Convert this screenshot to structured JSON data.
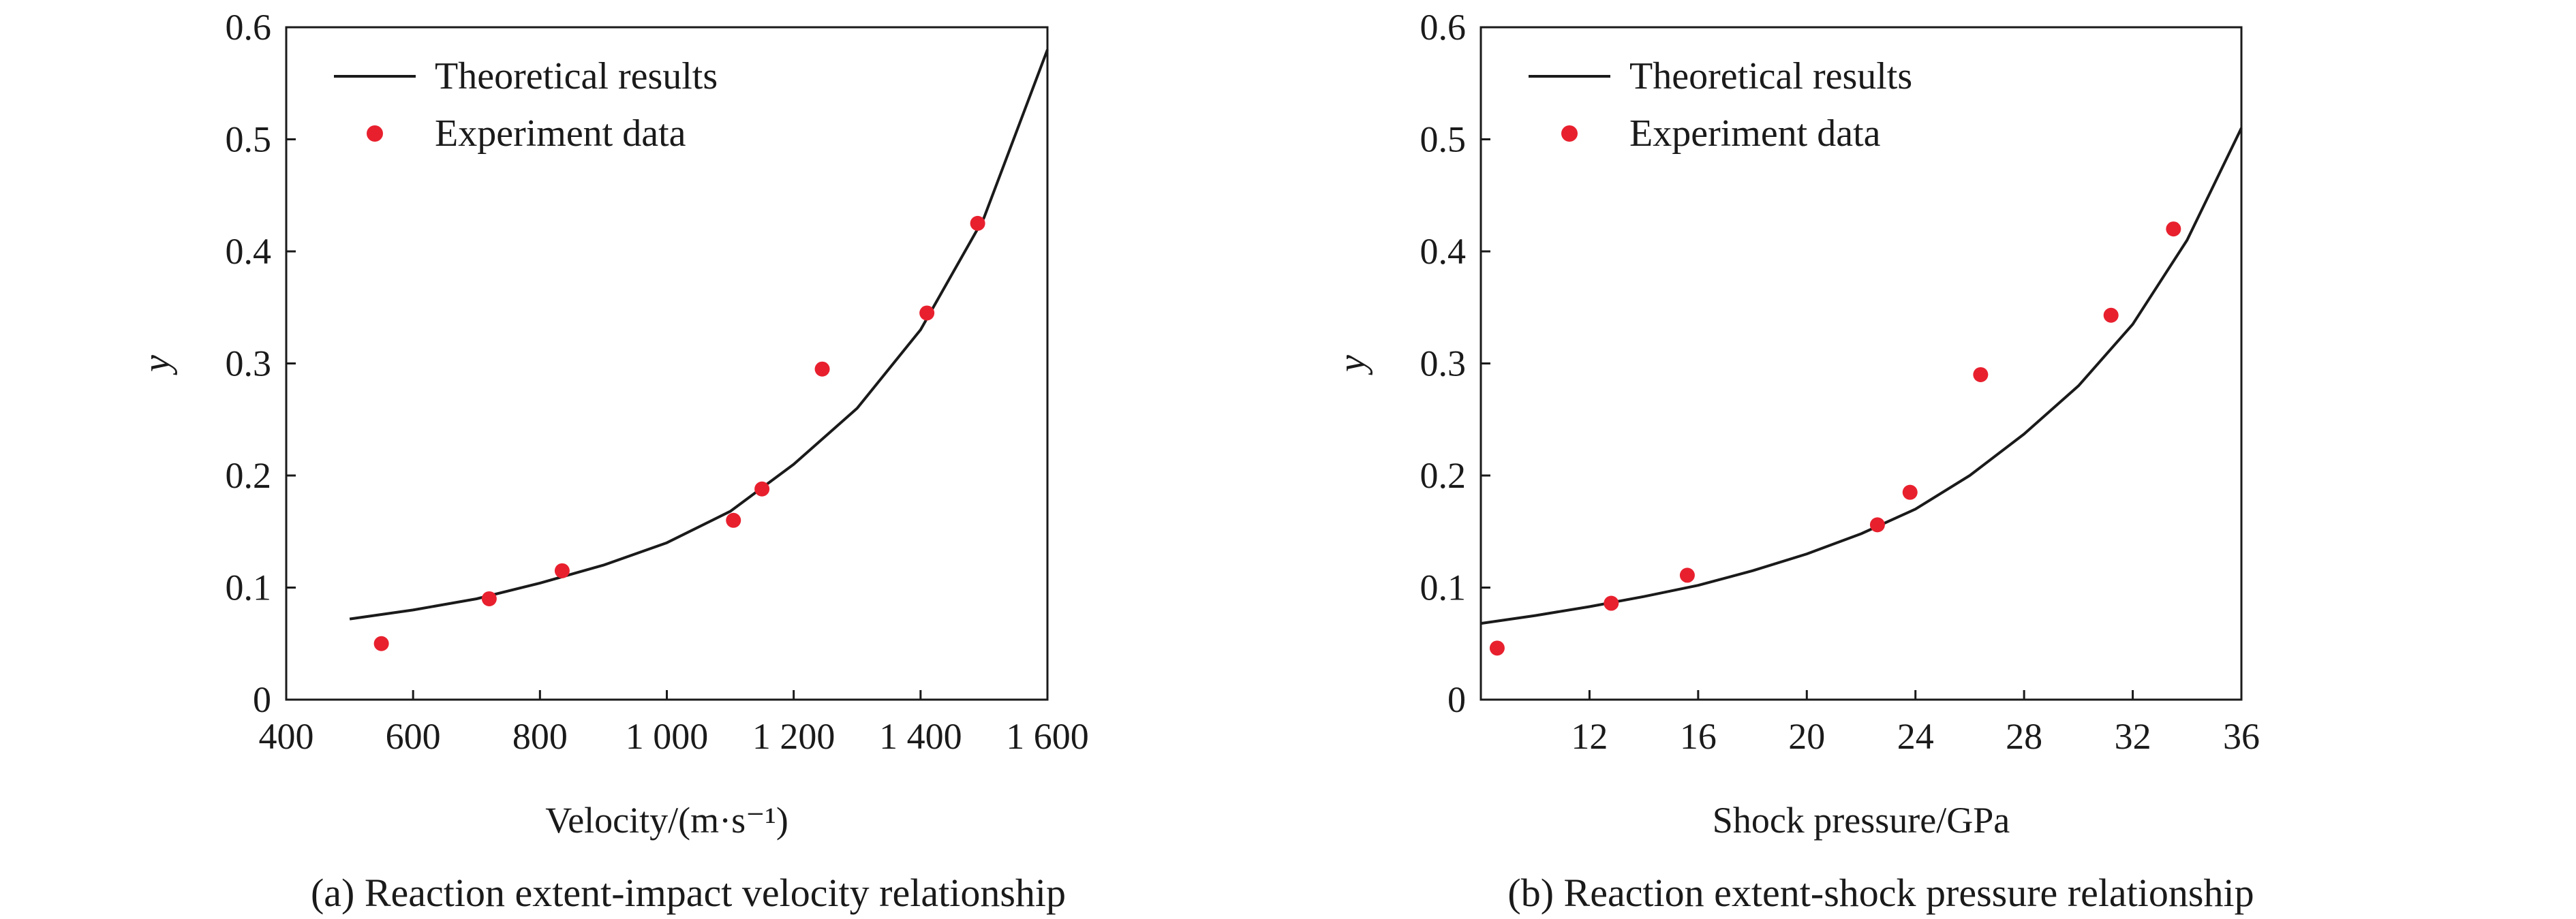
{
  "chart_data": [
    {
      "type": "line+scatter",
      "caption": "(a) Reaction extent-impact velocity relationship",
      "xlabel": "Velocity/(m·s⁻¹)",
      "ylabel": "y",
      "xlim": [
        400,
        1600
      ],
      "ylim": [
        0,
        0.6
      ],
      "xticks": [
        400,
        600,
        800,
        1000,
        1200,
        1400,
        1600
      ],
      "xtick_labels": [
        "400",
        "600",
        "800",
        "1 000",
        "1 200",
        "1 400",
        "1 600"
      ],
      "yticks": [
        0,
        0.1,
        0.2,
        0.3,
        0.4,
        0.5,
        0.6
      ],
      "ytick_labels": [
        "0",
        "0.1",
        "0.2",
        "0.3",
        "0.4",
        "0.5",
        "0.6"
      ],
      "legend_position": "top-left",
      "series": [
        {
          "name": "Theoretical results",
          "kind": "line",
          "color": "#1a1a1a",
          "x": [
            500,
            600,
            700,
            800,
            900,
            1000,
            1100,
            1200,
            1300,
            1400,
            1500,
            1600
          ],
          "y": [
            0.072,
            0.08,
            0.09,
            0.104,
            0.12,
            0.14,
            0.168,
            0.21,
            0.26,
            0.33,
            0.43,
            0.58
          ]
        },
        {
          "name": "Experiment data",
          "kind": "scatter",
          "color": "#e8202e",
          "x": [
            550,
            720,
            835,
            1105,
            1150,
            1245,
            1410,
            1490
          ],
          "y": [
            0.05,
            0.09,
            0.115,
            0.16,
            0.188,
            0.295,
            0.345,
            0.425
          ]
        }
      ]
    },
    {
      "type": "line+scatter",
      "caption": "(b) Reaction extent-shock pressure relationship",
      "xlabel": "Shock pressure/GPa",
      "ylabel": "y",
      "xlim": [
        8,
        36
      ],
      "ylim": [
        0,
        0.6
      ],
      "xticks": [
        12,
        16,
        20,
        24,
        28,
        32,
        36
      ],
      "xtick_labels": [
        "12",
        "16",
        "20",
        "24",
        "28",
        "32",
        "36"
      ],
      "yticks": [
        0,
        0.1,
        0.2,
        0.3,
        0.4,
        0.5,
        0.6
      ],
      "ytick_labels": [
        "0",
        "0.1",
        "0.2",
        "0.3",
        "0.4",
        "0.5",
        "0.6"
      ],
      "legend_position": "top-left",
      "series": [
        {
          "name": "Theoretical results",
          "kind": "line",
          "color": "#1a1a1a",
          "x": [
            8,
            10,
            12,
            14,
            16,
            18,
            20,
            22,
            24,
            26,
            28,
            30,
            32,
            34,
            36
          ],
          "y": [
            0.068,
            0.075,
            0.083,
            0.092,
            0.102,
            0.115,
            0.13,
            0.148,
            0.17,
            0.2,
            0.237,
            0.28,
            0.335,
            0.41,
            0.51
          ]
        },
        {
          "name": "Experiment data",
          "kind": "scatter",
          "color": "#e8202e",
          "x": [
            8.6,
            12.8,
            15.6,
            22.6,
            23.8,
            26.4,
            31.2,
            33.5
          ],
          "y": [
            0.046,
            0.086,
            0.111,
            0.156,
            0.185,
            0.29,
            0.343,
            0.42
          ]
        }
      ]
    }
  ]
}
